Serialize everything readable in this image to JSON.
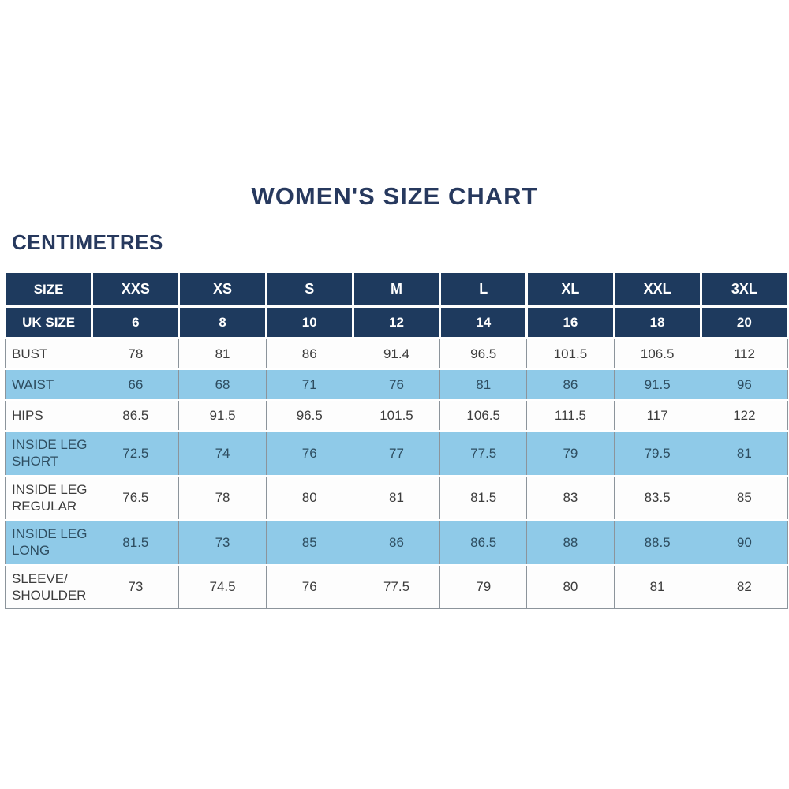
{
  "title": "WOMEN'S SIZE CHART",
  "units_label": "CENTIMETRES",
  "table_header": {
    "size_label": "SIZE",
    "uk_size_label": "UK SIZE"
  },
  "colors": {
    "header_navy": "#1E3A5E",
    "title_navy": "#27395E",
    "row_blue": "#8FCAE8",
    "blue_row_text": "#2E4D60",
    "white_row_text": "#3C3C3C",
    "cell_border_gray": "#8C949B",
    "header_text": "#FFFFFF"
  },
  "chart_data": {
    "type": "table",
    "title": "WOMEN'S SIZE CHART",
    "units": "CENTIMETRES",
    "size_labels": [
      "XXS",
      "XS",
      "S",
      "M",
      "L",
      "XL",
      "XXL",
      "3XL"
    ],
    "uk_sizes": [
      "6",
      "8",
      "10",
      "12",
      "14",
      "16",
      "18",
      "20"
    ],
    "measurements": [
      {
        "label": "BUST",
        "values": [
          "78",
          "81",
          "86",
          "91.4",
          "96.5",
          "101.5",
          "106.5",
          "112"
        ]
      },
      {
        "label": "WAIST",
        "values": [
          "66",
          "68",
          "71",
          "76",
          "81",
          "86",
          "91.5",
          "96"
        ]
      },
      {
        "label": "HIPS",
        "values": [
          "86.5",
          "91.5",
          "96.5",
          "101.5",
          "106.5",
          "111.5",
          "117",
          "122"
        ]
      },
      {
        "label": "INSIDE LEG SHORT",
        "values": [
          "72.5",
          "74",
          "76",
          "77",
          "77.5",
          "79",
          "79.5",
          "81"
        ]
      },
      {
        "label": "INSIDE LEG REGULAR",
        "values": [
          "76.5",
          "78",
          "80",
          "81",
          "81.5",
          "83",
          "83.5",
          "85"
        ]
      },
      {
        "label": "INSIDE LEG LONG",
        "values": [
          "81.5",
          "73",
          "85",
          "86",
          "86.5",
          "88",
          "88.5",
          "90"
        ]
      },
      {
        "label": "SLEEVE/ SHOULDER",
        "values": [
          "73",
          "74.5",
          "76",
          "77.5",
          "79",
          "80",
          "81",
          "82"
        ]
      }
    ]
  }
}
